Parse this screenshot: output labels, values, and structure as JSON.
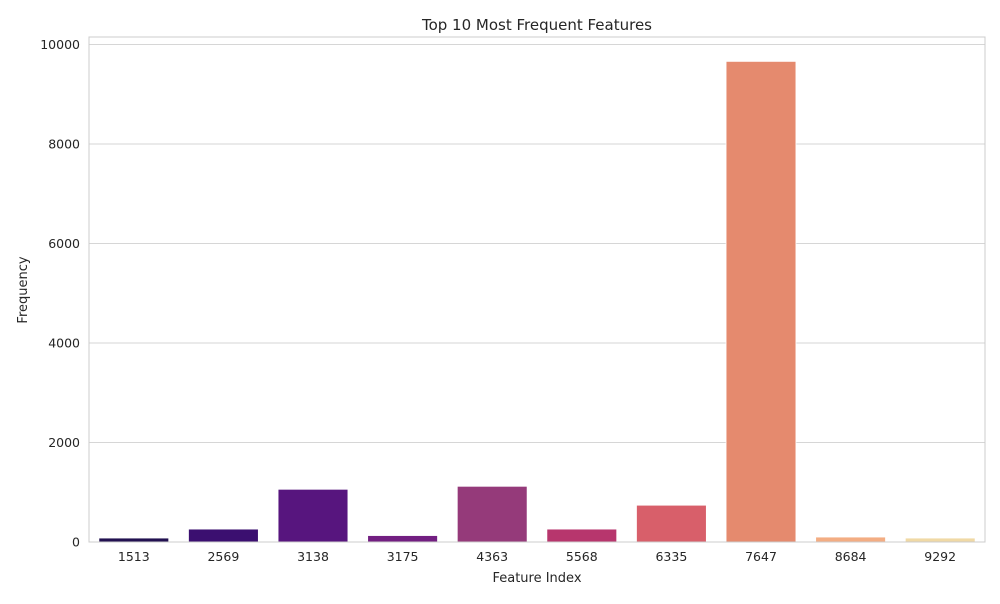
{
  "chart_data": {
    "type": "bar",
    "title": "Top 10 Most Frequent Features",
    "xlabel": "Feature Index",
    "ylabel": "Frequency",
    "categories": [
      "1513",
      "2569",
      "3138",
      "3175",
      "4363",
      "5568",
      "6335",
      "7647",
      "8684",
      "9292"
    ],
    "values": [
      80,
      260,
      1060,
      130,
      1120,
      260,
      740,
      9660,
      100,
      80
    ],
    "colors": [
      "#221150",
      "#3b0f70",
      "#57157e",
      "#721f81",
      "#953a7a",
      "#b7366d",
      "#d85f6a",
      "#e58a6e",
      "#f3ad83",
      "#f0d9a5"
    ],
    "ylim": [
      0,
      10150
    ],
    "yticks": [
      0,
      2000,
      4000,
      6000,
      8000,
      10000
    ],
    "grid": true,
    "legend": "none",
    "style": {
      "grid_color": "#d6d6d6",
      "frame_color": "#cccccc",
      "text_color": "#262626"
    }
  }
}
